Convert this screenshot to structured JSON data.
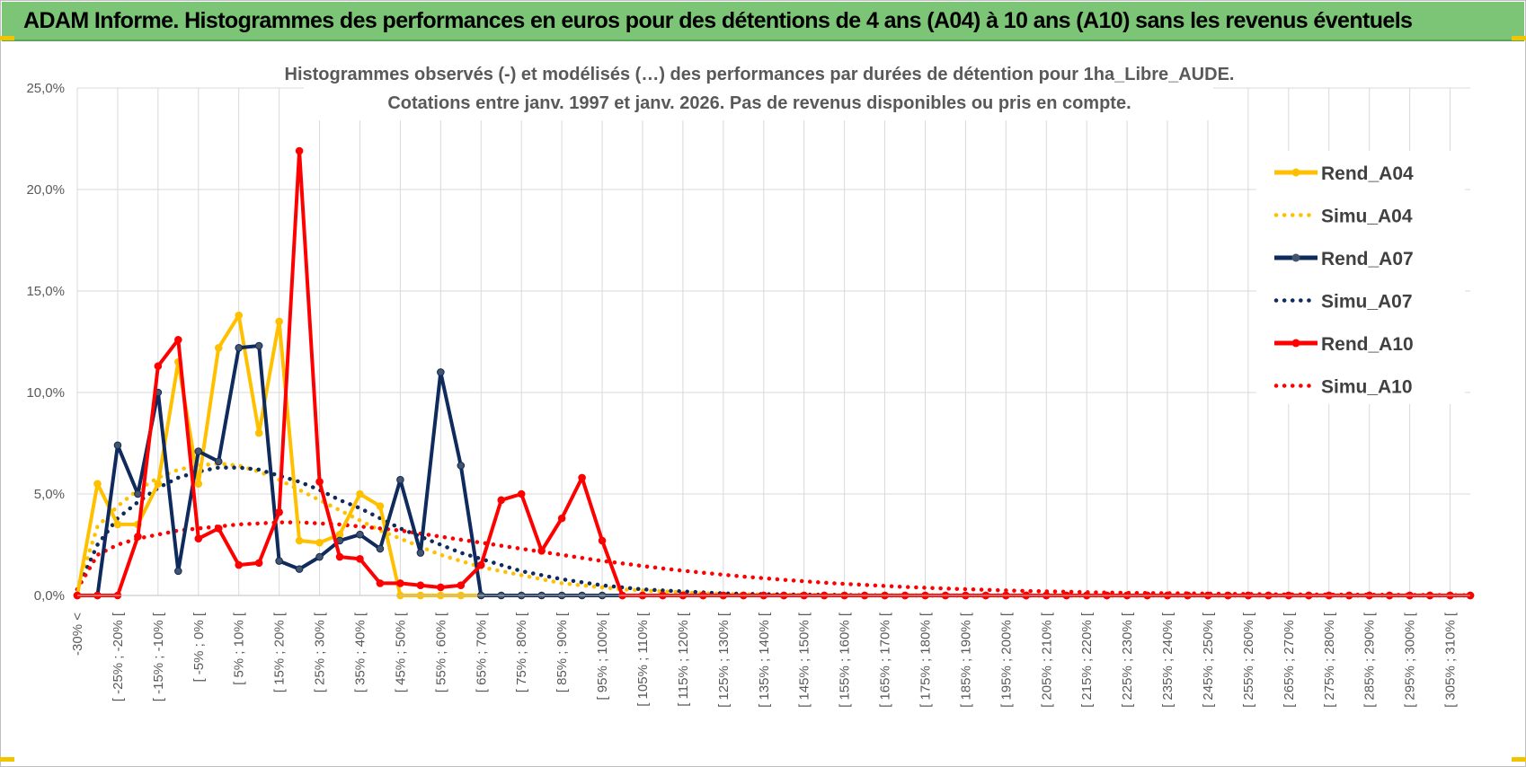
{
  "banner": {
    "title": "ADAM Informe. Histogrammes des performances en euros pour des détentions de 4 ans (A04) à 10 ans (A10) sans les revenus éventuels"
  },
  "colors": {
    "banner_bg": "#7cc576",
    "A04": "#ffc000",
    "A07": "#0f2a5c",
    "A10": "#ff0000",
    "grid": "#d9d9d9",
    "text": "#595959"
  },
  "chart_data": {
    "type": "line",
    "title_line1": "Histogrammes observés (-) et modélisés (…) des performances par durées de détention pour 1ha_Libre_AUDE.",
    "title_line2": "Cotations entre janv. 1997 et janv. 2026. Pas de revenus disponibles ou pris en compte.",
    "ylim": [
      0,
      25
    ],
    "yticks": [
      "0,0%",
      "5,0%",
      "10,0%",
      "15,0%",
      "20,0%",
      "25,0%"
    ],
    "grid": "on",
    "legend_position": "right",
    "x_labels": [
      "-30% <",
      "[ -25% ; -20% [",
      "[ -15% ; -10% [",
      "[ -5% ; 0% [",
      "[ 5% ; 10% [",
      "[ 15% ; 20% [",
      "[ 25% ; 30% [",
      "[ 35% ; 40% [",
      "[ 45% ; 50% [",
      "[ 55% ; 60% [",
      "[ 65% ; 70% [",
      "[ 75% ; 80% [",
      "[ 85% ; 90% [",
      "[ 95% ; 100% [",
      "[ 105% ; 110% [",
      "[ 115% ; 120% [",
      "[ 125% ; 130% [",
      "[ 135% ; 140% [",
      "[ 145% ; 150% [",
      "[ 155% ; 160% [",
      "[ 165% ; 170% [",
      "[ 175% ; 180% [",
      "[ 185% ; 190% [",
      "[ 195% ; 200% [",
      "[ 205% ; 210% [",
      "[ 215% ; 220% [",
      "[ 225% ; 230% [",
      "[ 235% ; 240% [",
      "[ 245% ; 250% [",
      "[ 255% ; 260% [",
      "[ 265% ; 270% [",
      "[ 275% ; 280% [",
      "[ 285% ; 290% [",
      "[ 295% ; 300% [",
      "[ 305% ; 310% ["
    ],
    "bins_count": 70,
    "series": [
      {
        "name": "Rend_A04",
        "style": "solid",
        "color": "#ffc000",
        "values": [
          0.0,
          5.5,
          3.5,
          3.5,
          5.5,
          11.5,
          5.5,
          12.2,
          13.8,
          8.0,
          13.5,
          2.7,
          2.6,
          3.0,
          5.0,
          4.4,
          0.0,
          0.0,
          0.0,
          0.0,
          0.0,
          0.0,
          0.0,
          0.0,
          0.0,
          0.0,
          0.0,
          0.0,
          0.0,
          0.0,
          0.0,
          0.0,
          0.0,
          0.0,
          0.0,
          0.0,
          0.0,
          0.0,
          0.0,
          0.0,
          0.0,
          0.0,
          0.0,
          0.0,
          0.0,
          0.0,
          0.0,
          0.0,
          0.0,
          0.0,
          0.0,
          0.0,
          0.0,
          0.0,
          0.0,
          0.0,
          0.0,
          0.0,
          0.0,
          0.0,
          0.0,
          0.0,
          0.0,
          0.0,
          0.0,
          0.0,
          0.0,
          0.0,
          0.0,
          0.0
        ]
      },
      {
        "name": "Simu_A04",
        "style": "dotted",
        "color": "#ffc000",
        "values": [
          0.3,
          3.4,
          4.4,
          5.2,
          5.8,
          6.2,
          6.4,
          6.5,
          6.4,
          6.1,
          5.7,
          5.2,
          4.7,
          4.2,
          3.7,
          3.2,
          2.8,
          2.4,
          2.0,
          1.7,
          1.4,
          1.2,
          1.0,
          0.8,
          0.6,
          0.5,
          0.4,
          0.3,
          0.25,
          0.2,
          0.15,
          0.1,
          0.08,
          0.06,
          0.05,
          0.04,
          0.03,
          0.02,
          0.01,
          0.0,
          0.0,
          0.0,
          0.0,
          0.0,
          0.0,
          0.0,
          0.0,
          0.0,
          0.0,
          0.0,
          0.0,
          0.0,
          0.0,
          0.0,
          0.0,
          0.0,
          0.0,
          0.0,
          0.0,
          0.0,
          0.0,
          0.0,
          0.0,
          0.0,
          0.0,
          0.0,
          0.0,
          0.0,
          0.0,
          0.0
        ]
      },
      {
        "name": "Rend_A07",
        "style": "solid",
        "color": "#0f2a5c",
        "values": [
          0.0,
          0.0,
          7.4,
          5.0,
          10.0,
          1.2,
          7.1,
          6.6,
          12.2,
          12.3,
          1.7,
          1.3,
          1.9,
          2.7,
          3.0,
          2.3,
          5.7,
          2.1,
          11.0,
          6.4,
          0.0,
          0.0,
          0.0,
          0.0,
          0.0,
          0.0,
          0.0,
          0.0,
          0.0,
          0.0,
          0.0,
          0.0,
          0.0,
          0.0,
          0.0,
          0.0,
          0.0,
          0.0,
          0.0,
          0.0,
          0.0,
          0.0,
          0.0,
          0.0,
          0.0,
          0.0,
          0.0,
          0.0,
          0.0,
          0.0,
          0.0,
          0.0,
          0.0,
          0.0,
          0.0,
          0.0,
          0.0,
          0.0,
          0.0,
          0.0,
          0.0,
          0.0,
          0.0,
          0.0,
          0.0,
          0.0,
          0.0,
          0.0,
          0.0,
          0.0
        ]
      },
      {
        "name": "Simu_A07",
        "style": "dotted",
        "color": "#0f2a5c",
        "values": [
          0.3,
          2.5,
          3.8,
          4.6,
          5.3,
          5.8,
          6.1,
          6.3,
          6.3,
          6.2,
          5.9,
          5.6,
          5.2,
          4.7,
          4.3,
          3.8,
          3.3,
          2.9,
          2.5,
          2.1,
          1.8,
          1.5,
          1.2,
          1.0,
          0.8,
          0.65,
          0.5,
          0.4,
          0.3,
          0.25,
          0.2,
          0.15,
          0.1,
          0.08,
          0.06,
          0.05,
          0.04,
          0.03,
          0.02,
          0.01,
          0.0,
          0.0,
          0.0,
          0.0,
          0.0,
          0.0,
          0.0,
          0.0,
          0.0,
          0.0,
          0.0,
          0.0,
          0.0,
          0.0,
          0.0,
          0.0,
          0.0,
          0.0,
          0.0,
          0.0,
          0.0,
          0.0,
          0.0,
          0.0,
          0.0,
          0.0,
          0.0,
          0.0,
          0.0,
          0.0
        ]
      },
      {
        "name": "Rend_A10",
        "style": "solid",
        "color": "#ff0000",
        "values": [
          0.0,
          0.0,
          0.0,
          2.9,
          11.3,
          12.6,
          2.8,
          3.3,
          1.5,
          1.6,
          4.1,
          21.9,
          5.6,
          1.9,
          1.8,
          0.6,
          0.6,
          0.5,
          0.4,
          0.5,
          1.5,
          4.7,
          5.0,
          2.2,
          3.8,
          5.8,
          2.7,
          0.0,
          0.0,
          0.0,
          0.0,
          0.0,
          0.0,
          0.0,
          0.0,
          0.0,
          0.0,
          0.0,
          0.0,
          0.0,
          0.0,
          0.0,
          0.0,
          0.0,
          0.0,
          0.0,
          0.0,
          0.0,
          0.0,
          0.0,
          0.0,
          0.0,
          0.0,
          0.0,
          0.0,
          0.0,
          0.0,
          0.0,
          0.0,
          0.0,
          0.0,
          0.0,
          0.0,
          0.0,
          0.0,
          0.0,
          0.0,
          0.0,
          0.0,
          0.0
        ]
      },
      {
        "name": "Simu_A10",
        "style": "dotted",
        "color": "#ff0000",
        "values": [
          0.3,
          2.0,
          2.5,
          2.8,
          3.0,
          3.2,
          3.3,
          3.4,
          3.5,
          3.55,
          3.6,
          3.6,
          3.55,
          3.5,
          3.4,
          3.3,
          3.2,
          3.05,
          2.9,
          2.75,
          2.6,
          2.45,
          2.3,
          2.15,
          2.0,
          1.85,
          1.7,
          1.58,
          1.45,
          1.33,
          1.22,
          1.12,
          1.02,
          0.93,
          0.85,
          0.77,
          0.7,
          0.63,
          0.57,
          0.52,
          0.47,
          0.42,
          0.38,
          0.34,
          0.31,
          0.28,
          0.25,
          0.22,
          0.2,
          0.18,
          0.16,
          0.14,
          0.13,
          0.12,
          0.11,
          0.1,
          0.09,
          0.08,
          0.07,
          0.06,
          0.05,
          0.05,
          0.04,
          0.04,
          0.03,
          0.03,
          0.02,
          0.02,
          0.01,
          0.01
        ]
      }
    ]
  }
}
